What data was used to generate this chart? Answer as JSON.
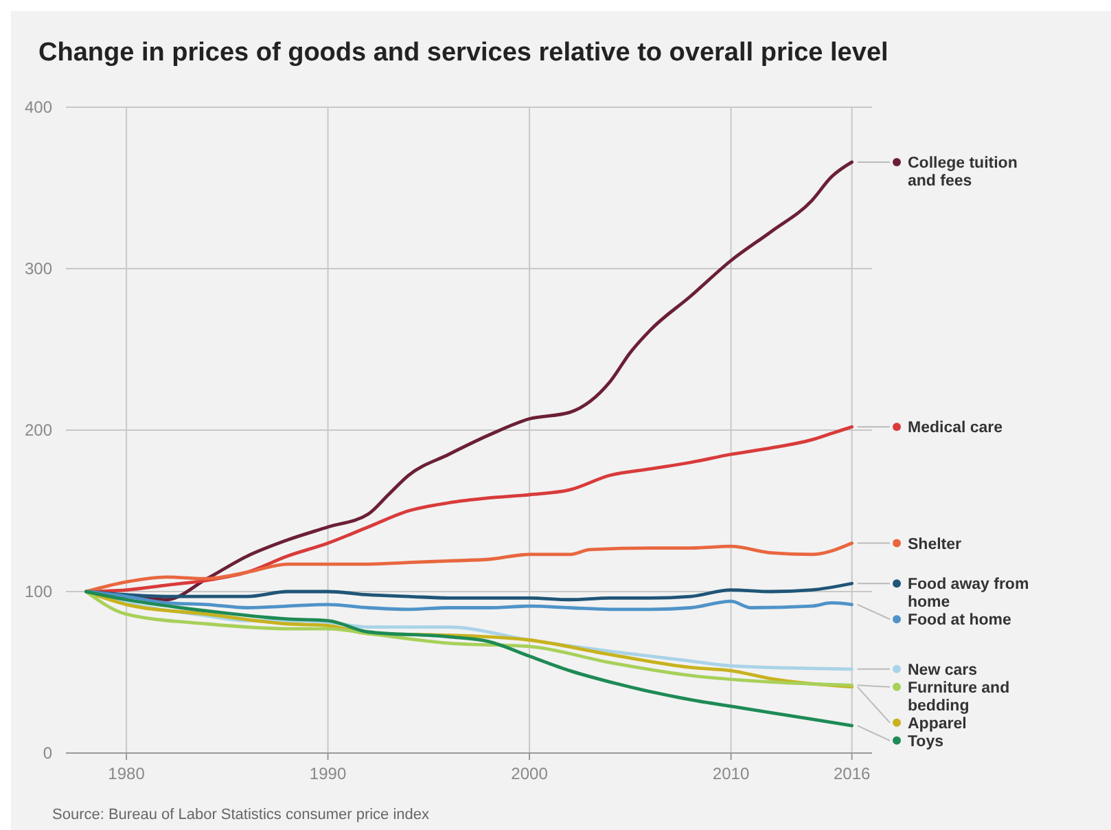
{
  "chart_data": {
    "type": "line",
    "title": "Change in prices of goods and services relative to overall price level",
    "annotations": [
      "Source: Bureau of Labor Statistics consumer price index"
    ],
    "xlim": [
      1977,
      2017
    ],
    "xticks": [
      1980,
      1990,
      2000,
      2010,
      2016
    ],
    "ylim": [
      0,
      400
    ],
    "yticks": [
      0,
      100,
      200,
      300,
      400
    ],
    "grid": true,
    "legend": "right",
    "marker": "none",
    "line_style": "solid",
    "series": [
      {
        "name": "College tuition and fees",
        "color": "#6b1f35",
        "x": [
          1978,
          1980,
          1982,
          1984,
          1986,
          1988,
          1990,
          1992,
          1993,
          1994,
          1996,
          1998,
          2000,
          2002,
          2004,
          2005,
          2006,
          2008,
          2010,
          2012,
          2014,
          2015,
          2016
        ],
        "values": [
          100,
          97,
          95,
          108,
          122,
          132,
          140,
          148,
          160,
          172,
          185,
          197,
          207,
          211,
          230,
          248,
          262,
          283,
          305,
          323,
          342,
          357,
          366
        ]
      },
      {
        "name": "Medical care",
        "color": "#d93b3b",
        "x": [
          1978,
          1980,
          1982,
          1984,
          1986,
          1988,
          1990,
          1992,
          1994,
          1996,
          1998,
          2000,
          2002,
          2004,
          2006,
          2008,
          2010,
          2012,
          2014,
          2015,
          2016
        ],
        "values": [
          100,
          101,
          104,
          107,
          112,
          122,
          130,
          140,
          150,
          155,
          158,
          160,
          163,
          172,
          176,
          180,
          185,
          189,
          194,
          198,
          202
        ]
      },
      {
        "name": "Shelter",
        "color": "#e8673f",
        "x": [
          1978,
          1980,
          1982,
          1984,
          1986,
          1988,
          1990,
          1992,
          1994,
          1996,
          1998,
          2000,
          2002,
          2003,
          2006,
          2008,
          2010,
          2012,
          2014,
          2016
        ],
        "values": [
          100,
          106,
          109,
          108,
          112,
          117,
          117,
          117,
          118,
          119,
          120,
          123,
          123,
          126,
          127,
          127,
          128,
          124,
          123,
          130
        ]
      },
      {
        "name": "Food away from home",
        "color": "#1f5577",
        "x": [
          1978,
          1980,
          1982,
          1984,
          1986,
          1988,
          1990,
          1992,
          1994,
          1996,
          1998,
          2000,
          2002,
          2004,
          2006,
          2008,
          2010,
          2012,
          2014,
          2016
        ],
        "values": [
          100,
          98,
          97,
          97,
          97,
          100,
          100,
          98,
          97,
          96,
          96,
          96,
          95,
          96,
          96,
          97,
          101,
          100,
          101,
          105
        ]
      },
      {
        "name": "Food at home",
        "color": "#4f93c8",
        "x": [
          1978,
          1980,
          1982,
          1984,
          1986,
          1988,
          1990,
          1992,
          1994,
          1996,
          1998,
          2000,
          2002,
          2004,
          2006,
          2008,
          2010,
          2011,
          2014,
          2015,
          2016
        ],
        "values": [
          100,
          97,
          93,
          92,
          90,
          91,
          92,
          90,
          89,
          90,
          90,
          91,
          90,
          89,
          89,
          90,
          94,
          90,
          91,
          93,
          92
        ]
      },
      {
        "name": "New cars",
        "color": "#a9d3e8",
        "x": [
          1978,
          1980,
          1984,
          1986,
          1988,
          1990,
          1992,
          1996,
          2000,
          2004,
          2008,
          2010,
          2016
        ],
        "values": [
          100,
          93,
          85,
          82,
          82,
          81,
          78,
          78,
          70,
          63,
          57,
          54,
          52
        ]
      },
      {
        "name": "Apparel",
        "color": "#c8b21e",
        "x": [
          1978,
          1980,
          1984,
          1988,
          1990,
          1992,
          1996,
          2000,
          2004,
          2008,
          2010,
          2012,
          2016
        ],
        "values": [
          100,
          92,
          86,
          80,
          79,
          74,
          73,
          70,
          61,
          53,
          51,
          46,
          41
        ]
      },
      {
        "name": "Furniture and bedding",
        "color": "#a8d05a",
        "x": [
          1978,
          1980,
          1984,
          1988,
          1990,
          1992,
          1996,
          2000,
          2004,
          2008,
          2012,
          2016
        ],
        "values": [
          100,
          86,
          80,
          77,
          77,
          74,
          68,
          66,
          56,
          48,
          44,
          42
        ]
      },
      {
        "name": "Toys",
        "color": "#1e8a55",
        "x": [
          1978,
          1980,
          1984,
          1988,
          1990,
          1992,
          1996,
          1998,
          2000,
          2002,
          2004,
          2008,
          2010,
          2014,
          2016
        ],
        "values": [
          100,
          95,
          88,
          83,
          82,
          75,
          72,
          69,
          60,
          51,
          44,
          33,
          29,
          21,
          17
        ]
      }
    ]
  }
}
